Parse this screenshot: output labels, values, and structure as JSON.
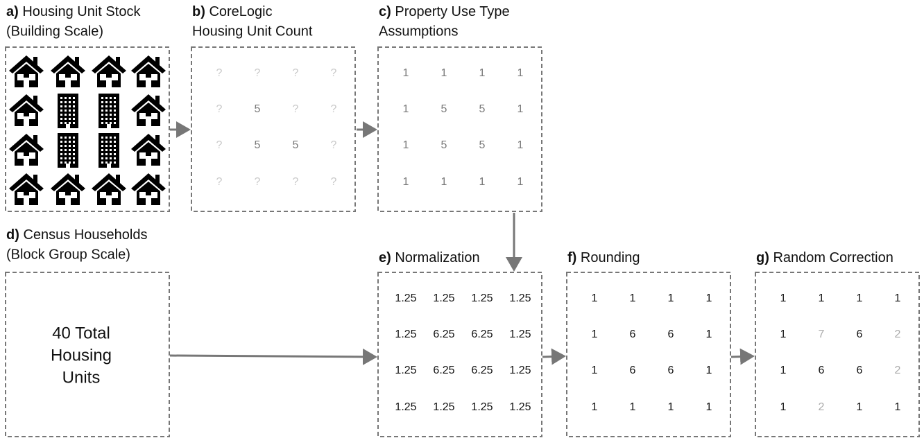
{
  "panels": [
    {
      "label": "a)",
      "title": [
        "Housing Unit Stock",
        "(Building Scale)"
      ]
    },
    {
      "label": "b)",
      "title": [
        "CoreLogic",
        "Housing Unit Count"
      ],
      "cells": [
        [
          "?",
          "?",
          "?",
          "?"
        ],
        [
          "?",
          "5",
          "?",
          "?"
        ],
        [
          "?",
          "5",
          "5",
          "?"
        ],
        [
          "?",
          "?",
          "?",
          "?"
        ]
      ]
    },
    {
      "label": "c)",
      "title": [
        "Property Use Type",
        "Assumptions"
      ],
      "cells": [
        [
          "1",
          "1",
          "1",
          "1"
        ],
        [
          "1",
          "5",
          "5",
          "1"
        ],
        [
          "1",
          "5",
          "5",
          "1"
        ],
        [
          "1",
          "1",
          "1",
          "1"
        ]
      ]
    },
    {
      "label": "d)",
      "title": [
        "Census Households",
        "(Block Group Scale)"
      ],
      "text": [
        "40 Total",
        "Housing",
        "Units"
      ]
    },
    {
      "label": "e)",
      "title": [
        "Normalization"
      ],
      "cells": [
        [
          "1.25",
          "1.25",
          "1.25",
          "1.25"
        ],
        [
          "1.25",
          "6.25",
          "6.25",
          "1.25"
        ],
        [
          "1.25",
          "6.25",
          "6.25",
          "1.25"
        ],
        [
          "1.25",
          "1.25",
          "1.25",
          "1.25"
        ]
      ]
    },
    {
      "label": "f)",
      "title": [
        "Rounding"
      ],
      "cells": [
        [
          "1",
          "1",
          "1",
          "1"
        ],
        [
          "1",
          "6",
          "6",
          "1"
        ],
        [
          "1",
          "6",
          "6",
          "1"
        ],
        [
          "1",
          "1",
          "1",
          "1"
        ]
      ]
    },
    {
      "label": "g)",
      "title": [
        "Random Correction"
      ],
      "cells": [
        [
          "1",
          "1",
          "1",
          "1"
        ],
        [
          "1",
          "7",
          "6",
          "2"
        ],
        [
          "1",
          "6",
          "6",
          "2"
        ],
        [
          "1",
          "2",
          "1",
          "1"
        ]
      ]
    }
  ]
}
